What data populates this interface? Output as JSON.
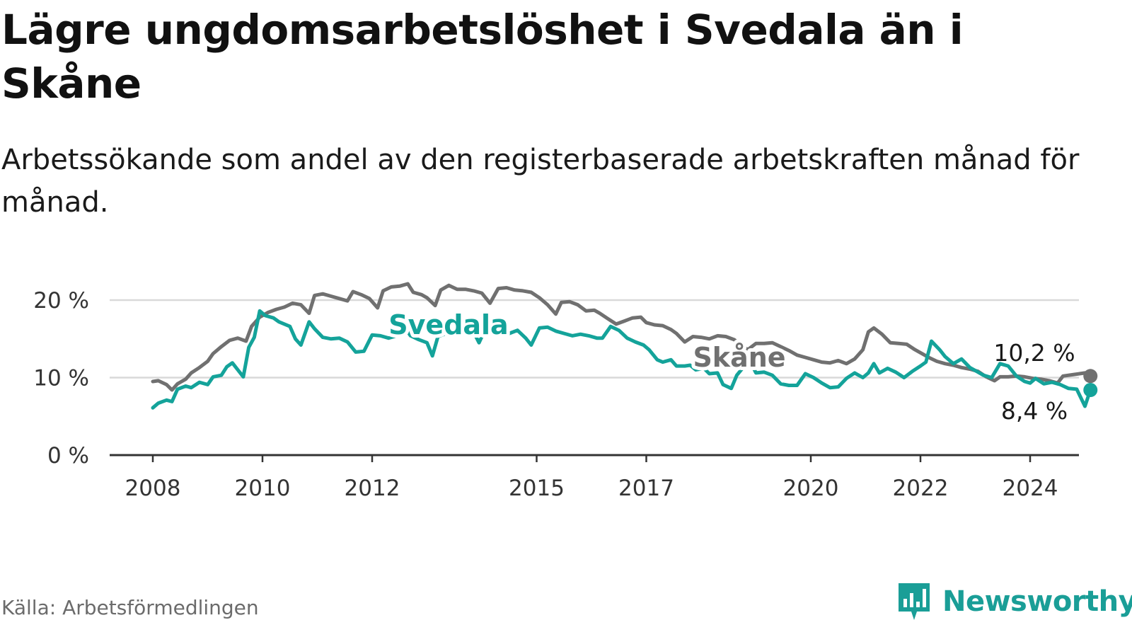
{
  "header": {
    "title": "Lägre ungdomsarbetslöshet i Svedala än i Skåne",
    "subtitle": "Arbetssökande som andel av den registerbaserade arbetskraften månad för månad."
  },
  "footer": {
    "source": "Källa: Arbetsförmedlingen",
    "brand": "Newsworthy"
  },
  "colors": {
    "svedala": "#14a39a",
    "skane": "#707070",
    "grid": "#d9d9d9",
    "axis": "#333333",
    "brand": "#1a9e97"
  },
  "chart_data": {
    "type": "line",
    "title": "Lägre ungdomsarbetslöshet i Svedala än i Skåne",
    "xlabel": "",
    "ylabel": "",
    "xlim": [
      2007.95,
      2024.8
    ],
    "ylim": [
      0,
      22
    ],
    "y_ticks": [
      0,
      10,
      20
    ],
    "y_tick_labels": [
      "0 %",
      "10 %",
      "20 %"
    ],
    "x_ticks": [
      2008,
      2010,
      2012,
      2015,
      2017,
      2020,
      2022,
      2024
    ],
    "x_tick_labels": [
      "2008",
      "2010",
      "2012",
      "2015",
      "2017",
      "2020",
      "2022",
      "2024"
    ],
    "grid": true,
    "series": [
      {
        "name": "Skåne",
        "label": "Skåne",
        "end_label": "10,2 %",
        "points": [
          [
            2008.0,
            9.5
          ],
          [
            2008.1,
            9.6
          ],
          [
            2008.25,
            9.1
          ],
          [
            2008.35,
            8.4
          ],
          [
            2008.45,
            9.2
          ],
          [
            2008.6,
            9.8
          ],
          [
            2008.7,
            10.6
          ],
          [
            2008.85,
            11.3
          ],
          [
            2009.0,
            12.1
          ],
          [
            2009.1,
            13.1
          ],
          [
            2009.25,
            14.0
          ],
          [
            2009.4,
            14.8
          ],
          [
            2009.55,
            15.1
          ],
          [
            2009.7,
            14.7
          ],
          [
            2009.8,
            16.6
          ],
          [
            2009.95,
            17.8
          ],
          [
            2010.1,
            18.4
          ],
          [
            2010.25,
            18.8
          ],
          [
            2010.4,
            19.1
          ],
          [
            2010.55,
            19.6
          ],
          [
            2010.7,
            19.4
          ],
          [
            2010.85,
            18.3
          ],
          [
            2010.95,
            20.6
          ],
          [
            2011.1,
            20.8
          ],
          [
            2011.25,
            20.5
          ],
          [
            2011.4,
            20.2
          ],
          [
            2011.55,
            19.9
          ],
          [
            2011.65,
            21.1
          ],
          [
            2011.8,
            20.7
          ],
          [
            2011.95,
            20.2
          ],
          [
            2012.1,
            19.0
          ],
          [
            2012.2,
            21.2
          ],
          [
            2012.35,
            21.7
          ],
          [
            2012.5,
            21.8
          ],
          [
            2012.65,
            22.1
          ],
          [
            2012.75,
            21.0
          ],
          [
            2012.9,
            20.7
          ],
          [
            2013.0,
            20.3
          ],
          [
            2013.15,
            19.3
          ],
          [
            2013.25,
            21.3
          ],
          [
            2013.4,
            21.9
          ],
          [
            2013.55,
            21.4
          ],
          [
            2013.7,
            21.4
          ],
          [
            2013.85,
            21.2
          ],
          [
            2014.0,
            20.9
          ],
          [
            2014.15,
            19.6
          ],
          [
            2014.3,
            21.5
          ],
          [
            2014.45,
            21.6
          ],
          [
            2014.6,
            21.3
          ],
          [
            2014.75,
            21.2
          ],
          [
            2014.9,
            21.0
          ],
          [
            2015.05,
            20.3
          ],
          [
            2015.2,
            19.4
          ],
          [
            2015.35,
            18.2
          ],
          [
            2015.45,
            19.7
          ],
          [
            2015.6,
            19.8
          ],
          [
            2015.75,
            19.4
          ],
          [
            2015.9,
            18.6
          ],
          [
            2016.05,
            18.7
          ],
          [
            2016.15,
            18.3
          ],
          [
            2016.3,
            17.6
          ],
          [
            2016.45,
            16.9
          ],
          [
            2016.6,
            17.3
          ],
          [
            2016.75,
            17.7
          ],
          [
            2016.9,
            17.8
          ],
          [
            2017.0,
            17.1
          ],
          [
            2017.15,
            16.8
          ],
          [
            2017.3,
            16.7
          ],
          [
            2017.45,
            16.2
          ],
          [
            2017.55,
            15.7
          ],
          [
            2017.7,
            14.6
          ],
          [
            2017.85,
            15.3
          ],
          [
            2018.0,
            15.2
          ],
          [
            2018.15,
            15.0
          ],
          [
            2018.3,
            15.4
          ],
          [
            2018.45,
            15.3
          ],
          [
            2018.6,
            14.9
          ],
          [
            2018.75,
            14.1
          ],
          [
            2018.85,
            13.6
          ],
          [
            2019.0,
            14.4
          ],
          [
            2019.15,
            14.4
          ],
          [
            2019.3,
            14.5
          ],
          [
            2019.45,
            14.0
          ],
          [
            2019.6,
            13.5
          ],
          [
            2019.75,
            12.9
          ],
          [
            2019.9,
            12.6
          ],
          [
            2020.05,
            12.3
          ],
          [
            2020.2,
            12.0
          ],
          [
            2020.35,
            11.9
          ],
          [
            2020.5,
            12.2
          ],
          [
            2020.65,
            11.8
          ],
          [
            2020.8,
            12.4
          ],
          [
            2020.95,
            13.6
          ],
          [
            2021.05,
            15.9
          ],
          [
            2021.15,
            16.4
          ],
          [
            2021.3,
            15.6
          ],
          [
            2021.45,
            14.5
          ],
          [
            2021.6,
            14.4
          ],
          [
            2021.75,
            14.3
          ],
          [
            2021.9,
            13.6
          ],
          [
            2022.05,
            13.0
          ],
          [
            2022.15,
            12.6
          ],
          [
            2022.3,
            12.1
          ],
          [
            2022.45,
            11.8
          ],
          [
            2022.6,
            11.6
          ],
          [
            2022.75,
            11.3
          ],
          [
            2022.9,
            11.1
          ],
          [
            2023.05,
            10.8
          ],
          [
            2023.2,
            10.1
          ],
          [
            2023.35,
            9.6
          ],
          [
            2023.45,
            10.1
          ],
          [
            2023.6,
            10.1
          ],
          [
            2023.75,
            10.2
          ],
          [
            2023.9,
            10.1
          ],
          [
            2024.05,
            9.9
          ],
          [
            2024.2,
            9.8
          ],
          [
            2024.35,
            9.6
          ],
          [
            2024.5,
            9.3
          ],
          [
            2024.6,
            10.2
          ],
          [
            2024.7,
            10.3
          ],
          [
            2024.8,
            10.4
          ],
          [
            2024.9,
            10.5
          ],
          [
            2025.0,
            10.6
          ],
          [
            2025.1,
            10.2
          ]
        ]
      },
      {
        "name": "Svedala",
        "label": "Svedala",
        "end_label": "8,4 %",
        "points": [
          [
            2008.0,
            6.1
          ],
          [
            2008.1,
            6.7
          ],
          [
            2008.25,
            7.1
          ],
          [
            2008.35,
            6.9
          ],
          [
            2008.45,
            8.5
          ],
          [
            2008.6,
            8.9
          ],
          [
            2008.7,
            8.7
          ],
          [
            2008.85,
            9.4
          ],
          [
            2009.0,
            9.1
          ],
          [
            2009.1,
            10.1
          ],
          [
            2009.25,
            10.3
          ],
          [
            2009.35,
            11.4
          ],
          [
            2009.45,
            11.9
          ],
          [
            2009.55,
            11.0
          ],
          [
            2009.65,
            10.1
          ],
          [
            2009.75,
            13.9
          ],
          [
            2009.85,
            15.2
          ],
          [
            2009.95,
            18.6
          ],
          [
            2010.05,
            18.0
          ],
          [
            2010.2,
            17.7
          ],
          [
            2010.3,
            17.2
          ],
          [
            2010.4,
            16.9
          ],
          [
            2010.5,
            16.6
          ],
          [
            2010.6,
            15.0
          ],
          [
            2010.7,
            14.2
          ],
          [
            2010.85,
            17.2
          ],
          [
            2010.95,
            16.3
          ],
          [
            2011.1,
            15.2
          ],
          [
            2011.25,
            15.0
          ],
          [
            2011.4,
            15.1
          ],
          [
            2011.55,
            14.6
          ],
          [
            2011.7,
            13.3
          ],
          [
            2011.85,
            13.4
          ],
          [
            2012.0,
            15.5
          ],
          [
            2012.15,
            15.4
          ],
          [
            2012.3,
            15.1
          ],
          [
            2012.45,
            15.4
          ],
          [
            2012.55,
            16.9
          ],
          [
            2012.7,
            15.4
          ],
          [
            2012.85,
            14.9
          ],
          [
            2013.0,
            14.5
          ],
          [
            2013.1,
            12.8
          ],
          [
            2013.2,
            15.3
          ],
          [
            2013.35,
            15.7
          ],
          [
            2013.5,
            16.1
          ],
          [
            2013.65,
            17.2
          ],
          [
            2013.8,
            16.6
          ],
          [
            2013.95,
            14.5
          ],
          [
            2014.1,
            16.8
          ],
          [
            2014.25,
            15.9
          ],
          [
            2014.35,
            15.8
          ],
          [
            2014.5,
            15.7
          ],
          [
            2014.65,
            16.1
          ],
          [
            2014.8,
            15.1
          ],
          [
            2014.9,
            14.2
          ],
          [
            2015.05,
            16.4
          ],
          [
            2015.2,
            16.5
          ],
          [
            2015.35,
            16.0
          ],
          [
            2015.5,
            15.7
          ],
          [
            2015.65,
            15.4
          ],
          [
            2015.8,
            15.6
          ],
          [
            2015.95,
            15.4
          ],
          [
            2016.1,
            15.1
          ],
          [
            2016.2,
            15.1
          ],
          [
            2016.35,
            16.6
          ],
          [
            2016.5,
            16.1
          ],
          [
            2016.65,
            15.1
          ],
          [
            2016.8,
            14.6
          ],
          [
            2016.95,
            14.2
          ],
          [
            2017.05,
            13.6
          ],
          [
            2017.2,
            12.3
          ],
          [
            2017.3,
            12.0
          ],
          [
            2017.45,
            12.3
          ],
          [
            2017.55,
            11.5
          ],
          [
            2017.7,
            11.5
          ],
          [
            2017.8,
            11.6
          ],
          [
            2017.9,
            11.0
          ],
          [
            2018.05,
            11.2
          ],
          [
            2018.15,
            10.5
          ],
          [
            2018.3,
            10.6
          ],
          [
            2018.4,
            9.1
          ],
          [
            2018.55,
            8.6
          ],
          [
            2018.65,
            10.3
          ],
          [
            2018.8,
            11.6
          ],
          [
            2018.9,
            12.0
          ],
          [
            2019.0,
            10.6
          ],
          [
            2019.15,
            10.7
          ],
          [
            2019.3,
            10.3
          ],
          [
            2019.45,
            9.2
          ],
          [
            2019.6,
            9.0
          ],
          [
            2019.75,
            9.0
          ],
          [
            2019.9,
            10.5
          ],
          [
            2020.05,
            10.0
          ],
          [
            2020.2,
            9.3
          ],
          [
            2020.35,
            8.7
          ],
          [
            2020.5,
            8.8
          ],
          [
            2020.65,
            9.9
          ],
          [
            2020.8,
            10.6
          ],
          [
            2020.95,
            10.0
          ],
          [
            2021.05,
            10.6
          ],
          [
            2021.15,
            11.8
          ],
          [
            2021.25,
            10.6
          ],
          [
            2021.4,
            11.2
          ],
          [
            2021.55,
            10.7
          ],
          [
            2021.7,
            10.0
          ],
          [
            2021.85,
            10.8
          ],
          [
            2022.0,
            11.5
          ],
          [
            2022.1,
            12.0
          ],
          [
            2022.2,
            14.7
          ],
          [
            2022.35,
            13.6
          ],
          [
            2022.45,
            12.7
          ],
          [
            2022.6,
            11.8
          ],
          [
            2022.75,
            12.4
          ],
          [
            2022.9,
            11.3
          ],
          [
            2023.0,
            10.9
          ],
          [
            2023.15,
            10.3
          ],
          [
            2023.3,
            10.0
          ],
          [
            2023.45,
            11.8
          ],
          [
            2023.6,
            11.5
          ],
          [
            2023.75,
            10.2
          ],
          [
            2023.9,
            9.5
          ],
          [
            2024.0,
            9.3
          ],
          [
            2024.1,
            9.9
          ],
          [
            2024.25,
            9.2
          ],
          [
            2024.4,
            9.4
          ],
          [
            2024.55,
            9.1
          ],
          [
            2024.7,
            8.6
          ],
          [
            2024.85,
            8.5
          ],
          [
            2025.0,
            6.3
          ],
          [
            2025.1,
            8.4
          ]
        ]
      }
    ]
  }
}
